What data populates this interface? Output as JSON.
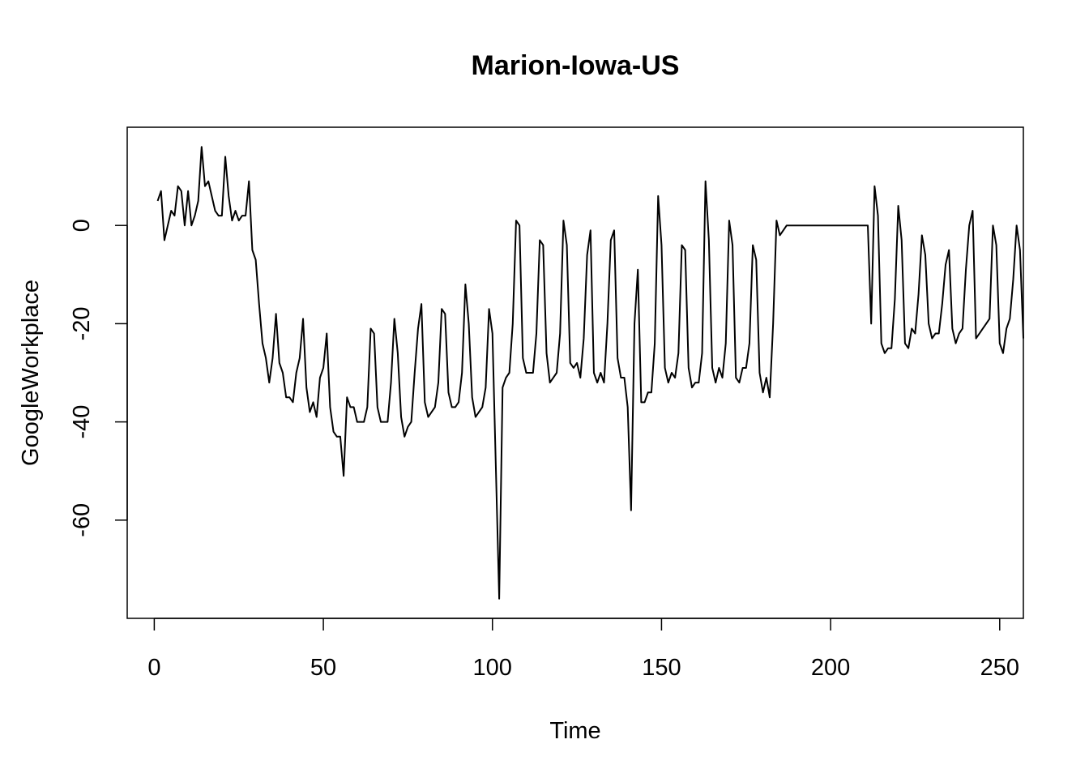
{
  "chart_data": {
    "type": "line",
    "title": "Marion-Iowa-US",
    "xlabel": "Time",
    "ylabel": "GoogleWorkplace",
    "xlim": [
      -8,
      257
    ],
    "ylim": [
      -80,
      20
    ],
    "xticks": [
      0,
      50,
      100,
      150,
      200,
      250
    ],
    "yticks": [
      0,
      -20,
      -40,
      -60
    ],
    "grid": false,
    "legend": "none",
    "colors": {
      "line": "#000000",
      "axis": "#000000",
      "background": "#ffffff"
    },
    "series": [
      {
        "x_start": 1,
        "x_step": 1,
        "values": [
          5,
          7,
          -3,
          0,
          3,
          2,
          8,
          7,
          0,
          7,
          0,
          2,
          5,
          16,
          8,
          9,
          6,
          3,
          2,
          2,
          14,
          6,
          1,
          3,
          1,
          2,
          2,
          9,
          -5,
          -7,
          -16,
          -24,
          -27,
          -32,
          -27,
          -18,
          -28,
          -30,
          -35,
          -35,
          -36,
          -30,
          -27,
          -19,
          -33,
          -38,
          -36,
          -39,
          -31,
          -29,
          -22,
          -37,
          -42,
          -43,
          -43,
          -51,
          -35,
          -37,
          -37,
          -40,
          -40,
          -40,
          -37,
          -21,
          -22,
          -37,
          -40,
          -40,
          -40,
          -32,
          -19,
          -26,
          -39,
          -43,
          -41,
          -40,
          -30,
          -21,
          -16,
          -36,
          -39,
          -38,
          -37,
          -32,
          -17,
          -18,
          -34,
          -37,
          -37,
          -36,
          -30,
          -12,
          -20,
          -35,
          -39,
          -38,
          -37,
          -33,
          -17,
          -22,
          -49,
          -76,
          -33,
          -31,
          -30,
          -20,
          1,
          0,
          -27,
          -30,
          -30,
          -30,
          -22,
          -3,
          -4,
          -26,
          -32,
          -31,
          -30,
          -22,
          1,
          -4,
          -28,
          -29,
          -28,
          -31,
          -23,
          -6,
          -1,
          -30,
          -32,
          -30,
          -32,
          -20,
          -3,
          -1,
          -27,
          -31,
          -31,
          -37,
          -58,
          -20,
          -9,
          -36,
          -36,
          -34,
          -34,
          -24,
          6,
          -4,
          -29,
          -32,
          -30,
          -31,
          -26,
          -4,
          -5,
          -29,
          -33,
          -32,
          -32,
          -26,
          9,
          -3,
          -29,
          -32,
          -29,
          -31,
          -24,
          1,
          -4,
          -31,
          -32,
          -29,
          -29,
          -24,
          -4,
          -7,
          -30,
          -34,
          -31,
          -35,
          -20,
          1,
          -2,
          -1,
          0,
          0,
          0,
          0,
          0,
          0,
          0,
          0,
          0,
          0,
          0,
          0,
          0,
          0,
          0,
          0,
          0,
          0,
          0,
          0,
          0,
          0,
          0,
          0,
          0,
          -20,
          8,
          2,
          -24,
          -26,
          -25,
          -25,
          -15,
          4,
          -3,
          -24,
          -25,
          -21,
          -22,
          -14,
          -2,
          -6,
          -20,
          -23,
          -22,
          -22,
          -16,
          -8,
          -5,
          -21,
          -24,
          -22,
          -21,
          -9,
          0,
          3,
          -23,
          -22,
          -21,
          -20,
          -19,
          0,
          -4,
          -24,
          -26,
          -21,
          -19,
          -11,
          0,
          -5,
          -23
        ]
      }
    ]
  }
}
